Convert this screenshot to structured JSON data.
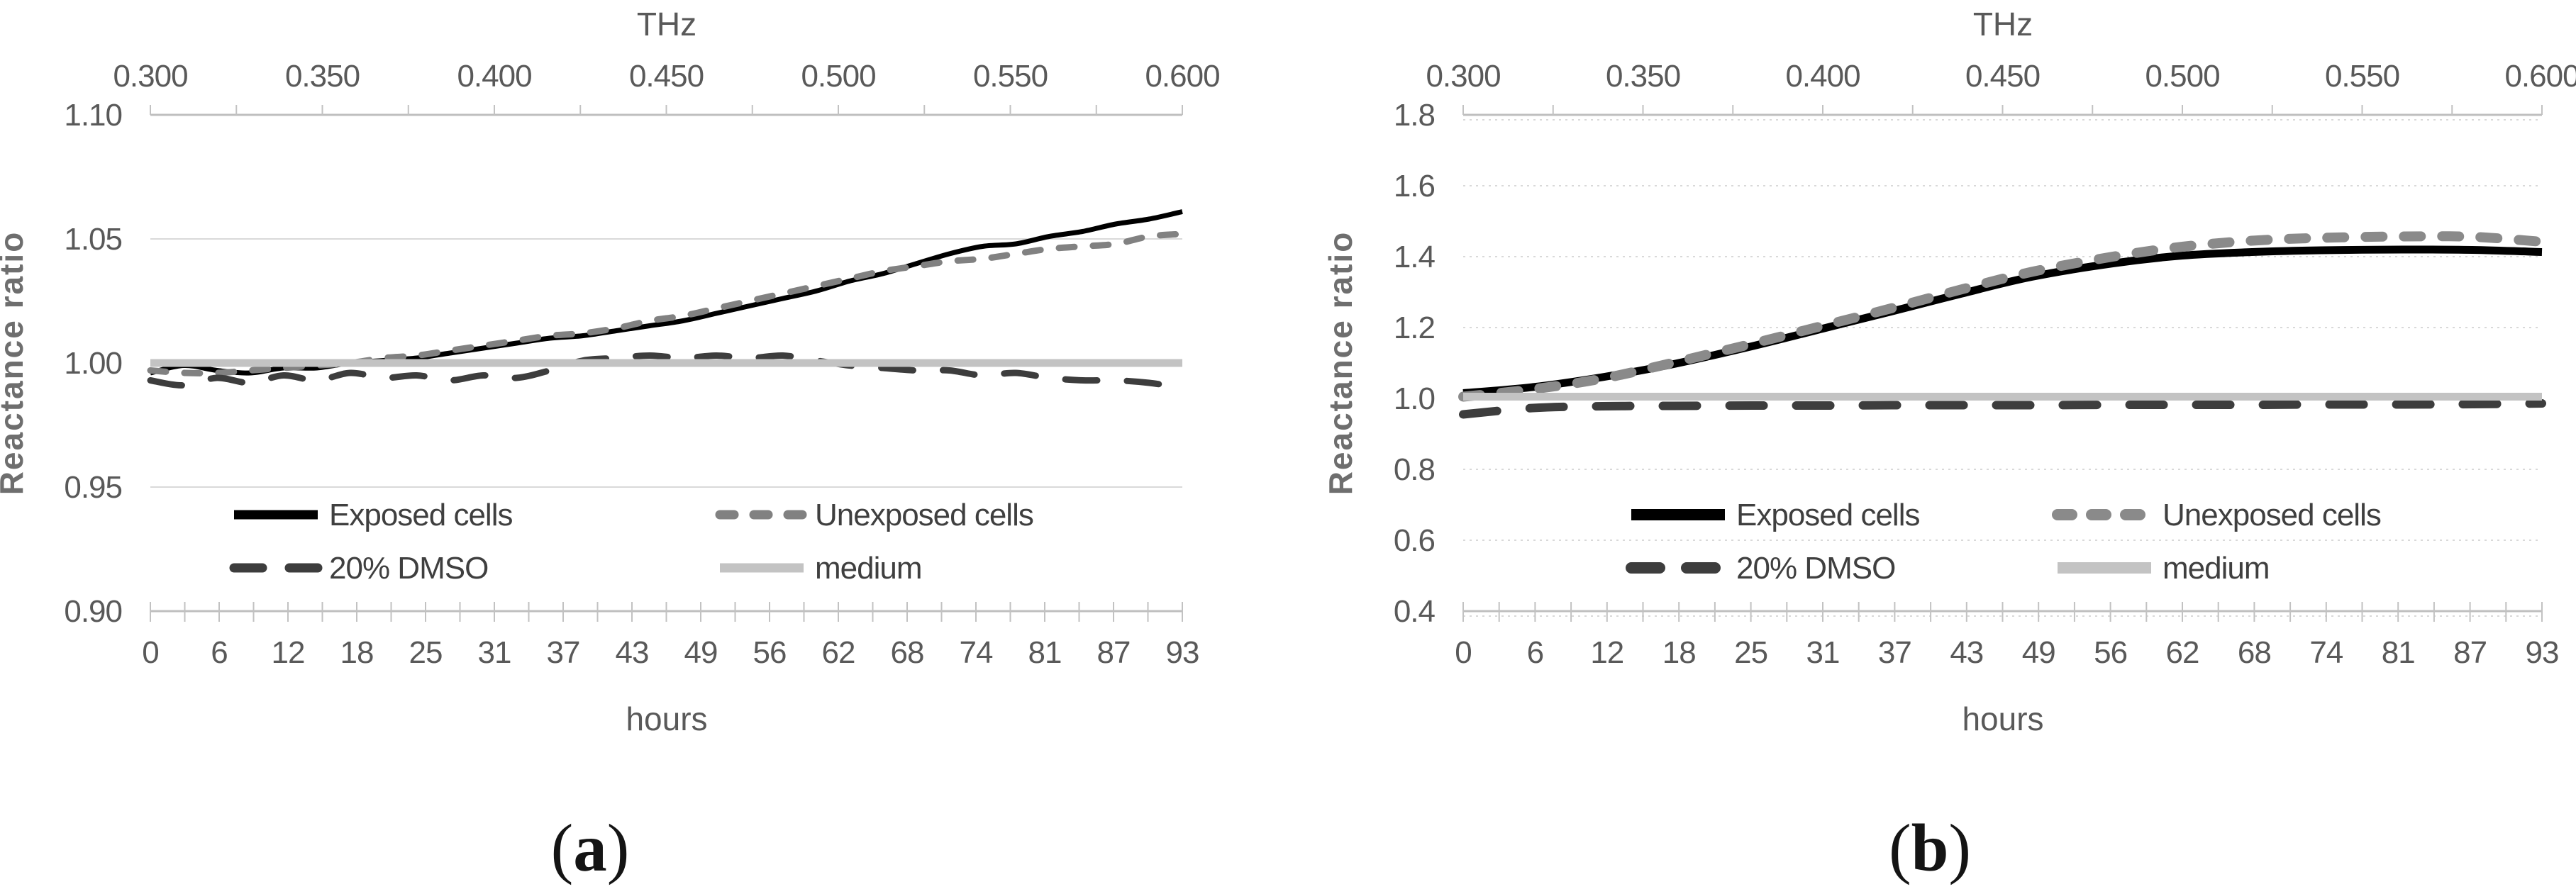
{
  "figure": {
    "background": "#ffffff",
    "description": "Two line charts of reactance ratio versus hours (bottom axis) and THz (top axis)"
  },
  "colors": {
    "axis_line": "#bfbfbf",
    "tick_mark": "#c2c2c2",
    "gridline": "#d9d9d9",
    "tick_text": "#595959",
    "axis_title_text": "#595959",
    "y_axis_title_text": "#6e6e6e",
    "legend_text": "#3f3f3f",
    "caption_text": "#141414"
  },
  "chart_data": [
    {
      "id": "a",
      "type": "line",
      "caption": "(a)",
      "top_axis": {
        "title": "THz",
        "tick_labels": [
          "0.300",
          "0.350",
          "0.400",
          "0.450",
          "0.500",
          "0.550",
          "0.600"
        ],
        "range": [
          0.3,
          0.6
        ],
        "minor_ticks_between_majors": 1
      },
      "x_axis": {
        "title": "hours",
        "tick_labels": [
          "0",
          "6",
          "12",
          "18",
          "25",
          "31",
          "37",
          "43",
          "49",
          "56",
          "62",
          "68",
          "74",
          "81",
          "87",
          "93"
        ],
        "range": [
          0,
          93
        ],
        "minor_ticks_between_majors": 1
      },
      "y_axis": {
        "title": "Reactance ratio",
        "tick_labels": [
          "1.10",
          "1.05",
          "1.00",
          "0.95",
          "0.90"
        ],
        "tick_values": [
          1.1,
          1.05,
          1.0,
          0.95,
          0.9
        ],
        "range": [
          0.9,
          1.1
        ],
        "gridline_style": "solid"
      },
      "legend": {
        "position": "inside-bottom",
        "entries": [
          "Exposed cells",
          "Unexposed cells",
          "20% DMSO",
          "medium"
        ]
      },
      "series": [
        {
          "name": "Exposed cells",
          "color": "#000000",
          "line_style": "solid",
          "hours": [
            0,
            3,
            6,
            9,
            12,
            15,
            18,
            21,
            24,
            27,
            30,
            33,
            36,
            39,
            42,
            45,
            48,
            51,
            54,
            57,
            60,
            63,
            66,
            69,
            72,
            75,
            78,
            81,
            84,
            87,
            90,
            93
          ],
          "values": [
            0.996,
            0.999,
            0.997,
            0.996,
            0.998,
            0.998,
            1.0,
            1.001,
            1.002,
            1.004,
            1.006,
            1.008,
            1.01,
            1.011,
            1.013,
            1.015,
            1.017,
            1.02,
            1.023,
            1.026,
            1.029,
            1.033,
            1.036,
            1.04,
            1.044,
            1.047,
            1.048,
            1.051,
            1.053,
            1.056,
            1.058,
            1.061
          ]
        },
        {
          "name": "Unexposed cells",
          "color": "#818181",
          "line_style": "dashed",
          "hours": [
            0,
            3,
            6,
            9,
            12,
            15,
            18,
            21,
            24,
            27,
            30,
            33,
            36,
            39,
            42,
            45,
            48,
            51,
            54,
            57,
            60,
            63,
            66,
            69,
            72,
            75,
            78,
            81,
            84,
            87,
            90,
            93
          ],
          "values": [
            0.997,
            0.996,
            0.996,
            0.997,
            0.998,
            0.999,
            1.0,
            1.002,
            1.003,
            1.005,
            1.007,
            1.009,
            1.011,
            1.012,
            1.014,
            1.017,
            1.019,
            1.022,
            1.025,
            1.028,
            1.031,
            1.034,
            1.037,
            1.039,
            1.041,
            1.042,
            1.044,
            1.046,
            1.047,
            1.048,
            1.051,
            1.052
          ]
        },
        {
          "name": "20% DMSO",
          "color": "#3d3d3d",
          "line_style": "long-dashed",
          "hours": [
            0,
            3,
            6,
            9,
            12,
            15,
            18,
            21,
            24,
            27,
            30,
            33,
            36,
            39,
            42,
            45,
            48,
            51,
            54,
            57,
            60,
            63,
            66,
            69,
            72,
            75,
            78,
            81,
            84,
            87,
            90,
            93
          ],
          "values": [
            0.993,
            0.991,
            0.994,
            0.992,
            0.995,
            0.993,
            0.996,
            0.994,
            0.995,
            0.993,
            0.995,
            0.994,
            0.997,
            1.001,
            1.002,
            1.003,
            1.002,
            1.003,
            1.002,
            1.003,
            1.001,
            0.999,
            0.998,
            0.997,
            0.997,
            0.995,
            0.996,
            0.994,
            0.993,
            0.993,
            0.992,
            0.99
          ]
        },
        {
          "name": "medium",
          "color": "#c3c3c3",
          "line_style": "solid",
          "hours": [
            0,
            93
          ],
          "values": [
            1.0,
            1.0
          ]
        }
      ]
    },
    {
      "id": "b",
      "type": "line",
      "caption": "(b)",
      "top_axis": {
        "title": "THz",
        "tick_labels": [
          "0.300",
          "0.350",
          "0.400",
          "0.450",
          "0.500",
          "0.550",
          "0.600"
        ],
        "range": [
          0.3,
          0.6
        ],
        "minor_ticks_between_majors": 1
      },
      "x_axis": {
        "title": "hours",
        "tick_labels": [
          "0",
          "6",
          "12",
          "18",
          "25",
          "31",
          "37",
          "43",
          "49",
          "56",
          "62",
          "68",
          "74",
          "81",
          "87",
          "93"
        ],
        "range": [
          0,
          93
        ],
        "minor_ticks_between_majors": 1
      },
      "y_axis": {
        "title": "Reactance ratio",
        "tick_labels": [
          "1.8",
          "1.6",
          "1.4",
          "1.2",
          "1.0",
          "0.8",
          "0.6",
          "0.4"
        ],
        "tick_values": [
          1.8,
          1.6,
          1.4,
          1.2,
          1.0,
          0.8,
          0.6,
          0.4
        ],
        "range": [
          0.4,
          1.8
        ],
        "gridline_style": "dotted"
      },
      "legend": {
        "position": "inside-bottom",
        "entries": [
          "Exposed cells",
          "Unexposed cells",
          "20% DMSO",
          "medium"
        ]
      },
      "series": [
        {
          "name": "Exposed cells",
          "color": "#000000",
          "line_style": "solid",
          "hours": [
            0,
            6,
            12,
            18,
            25,
            31,
            37,
            43,
            49,
            56,
            62,
            68,
            74,
            81,
            87,
            93
          ],
          "values": [
            1.015,
            1.032,
            1.06,
            1.096,
            1.148,
            1.197,
            1.246,
            1.296,
            1.343,
            1.381,
            1.403,
            1.413,
            1.418,
            1.42,
            1.419,
            1.413
          ]
        },
        {
          "name": "Unexposed cells",
          "color": "#8a8a8a",
          "line_style": "dashed",
          "hours": [
            0,
            6,
            12,
            18,
            25,
            31,
            37,
            43,
            49,
            56,
            62,
            68,
            74,
            81,
            87,
            93
          ],
          "values": [
            1.005,
            1.026,
            1.056,
            1.1,
            1.155,
            1.205,
            1.255,
            1.308,
            1.357,
            1.4,
            1.428,
            1.445,
            1.453,
            1.457,
            1.456,
            1.442
          ]
        },
        {
          "name": "20% DMSO",
          "color": "#3d3d3d",
          "line_style": "long-dashed",
          "hours": [
            0,
            6,
            12,
            18,
            25,
            31,
            37,
            43,
            49,
            56,
            62,
            68,
            74,
            81,
            87,
            93
          ],
          "values": [
            0.955,
            0.973,
            0.978,
            0.979,
            0.98,
            0.98,
            0.981,
            0.981,
            0.981,
            0.982,
            0.982,
            0.982,
            0.983,
            0.983,
            0.984,
            0.986
          ]
        },
        {
          "name": "medium",
          "color": "#c3c3c3",
          "line_style": "solid",
          "hours": [
            0,
            93
          ],
          "values": [
            1.005,
            1.005
          ]
        }
      ]
    }
  ]
}
